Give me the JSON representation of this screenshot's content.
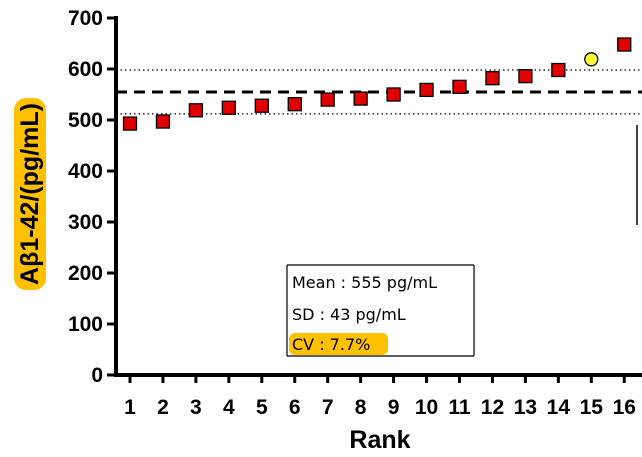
{
  "chart_data": {
    "type": "scatter",
    "xlabel": "Rank",
    "ylabel": "Aβ1-42/(pg/mL)",
    "ylim": [
      0,
      700
    ],
    "y_ticks": [
      "0",
      "100",
      "200",
      "300",
      "400",
      "500",
      "600",
      "700"
    ],
    "x_ticks": [
      "1",
      "2",
      "3",
      "4",
      "5",
      "6",
      "7",
      "8",
      "9",
      "10",
      "11",
      "12",
      "13",
      "14",
      "15",
      "16"
    ],
    "series": [
      {
        "marker": "square",
        "color": "#e00000",
        "points": [
          {
            "x": 1,
            "y": 493
          },
          {
            "x": 2,
            "y": 497
          },
          {
            "x": 3,
            "y": 519
          },
          {
            "x": 4,
            "y": 524
          },
          {
            "x": 5,
            "y": 528
          },
          {
            "x": 6,
            "y": 531
          },
          {
            "x": 7,
            "y": 540
          },
          {
            "x": 8,
            "y": 542
          },
          {
            "x": 9,
            "y": 550
          },
          {
            "x": 10,
            "y": 559
          },
          {
            "x": 11,
            "y": 565
          },
          {
            "x": 12,
            "y": 582
          },
          {
            "x": 13,
            "y": 586
          },
          {
            "x": 14,
            "y": 598
          },
          {
            "x": 16,
            "y": 648
          }
        ]
      },
      {
        "marker": "circle",
        "color": "#ffff33",
        "points": [
          {
            "x": 15,
            "y": 619
          }
        ]
      }
    ],
    "reference_lines": [
      {
        "y": 555,
        "style": "dashed"
      },
      {
        "y": 598,
        "style": "dotted"
      },
      {
        "y": 512,
        "style": "dotted"
      }
    ],
    "annotation": {
      "mean_text": "Mean : 555 pg/mL",
      "sd_text": "SD : 43 pg/mL",
      "cv_text": "CV : 7.7%"
    },
    "highlight_color": "#ffc000"
  }
}
